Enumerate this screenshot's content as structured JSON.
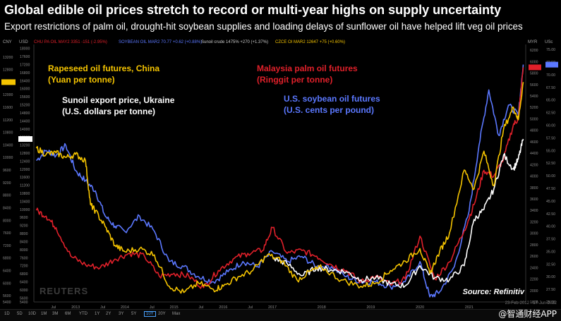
{
  "title": "Global edible oil prices stretch to record or multi-year highs on supply uncertainty",
  "subtitle": "Export restrictions of palm oil, drought-hit soybean supplies and loading delays of sunflower oil have helped lift veg oil prices",
  "source": "Source: Refinitiv",
  "watermark": "@智通财经APP",
  "reuters": "REUTERS",
  "date_stamp": "23-Feb-2012 - 17-Jun-2022",
  "infobar": {
    "cny_label": "CNY",
    "usd_label": "USD",
    "myr_label": "MYR",
    "usc_label": "USc",
    "palm": "CHU PA OIL MAY2  3351  -151 (-2.95%)",
    "soy": "SOYBEAN OIL MAR2  70.77  +0.62 (+0.88%)",
    "sun": "Sunoil crude  1475%  +270 (+1.37%)",
    "rape": "CZCE OI MAR2  12647  +75 (+0.60%)"
  },
  "toolbar": {
    "buttons": [
      "1D",
      "5D",
      "10D",
      "1M",
      "3M",
      "6M",
      "YTD",
      "1Y",
      "2Y",
      "3Y",
      "5Y",
      "10Y",
      "20Y",
      "Max"
    ],
    "active": "10Y"
  },
  "annotations": {
    "rapeseed": [
      "Rapeseed oil futures, China",
      "(Yuan per tonne)"
    ],
    "sunoil": [
      "Sunoil export price, Ukraine",
      "(U.S. dollars per tonne)"
    ],
    "palm": [
      "Malaysia palm oil futures",
      "(Ringgit per tonne)"
    ],
    "soy": [
      "U.S. soybean oil futures",
      "(U.S. cents per pound)"
    ]
  },
  "chart_data": {
    "type": "line",
    "title": "Global edible oil prices stretch to record or multi-year highs on supply uncertainty",
    "xlabel": "",
    "ylabel": "",
    "x_ticks": [
      "Jul",
      "2013",
      "Jul",
      "2014",
      "Jul",
      "2015",
      "Jul",
      "2016",
      "Jul",
      "2017",
      "2018",
      "2019",
      "2020",
      "2021"
    ],
    "axes": {
      "cny": {
        "ticks": [
          5400,
          5600,
          6000,
          6400,
          6800,
          7200,
          7600,
          8000,
          8400,
          8800,
          9200,
          9600,
          10000,
          10400,
          10800,
          11200,
          11600,
          12000,
          12400,
          12800,
          13200
        ],
        "range": [
          5400,
          13600
        ]
      },
      "usd": {
        "ticks": [
          5400,
          5600,
          6000,
          6400,
          6800,
          7200,
          7600,
          8000,
          8400,
          8800,
          9200,
          9600,
          10000,
          10400,
          10800,
          11200,
          11600,
          12000,
          12400,
          12800,
          13200,
          13600,
          14000,
          14400,
          14800,
          15200,
          15600,
          16000,
          16400,
          16800,
          17200,
          17600,
          18000
        ],
        "range": [
          5400,
          18200
        ]
      },
      "myr": {
        "ticks": [
          1800,
          2000,
          2200,
          2400,
          2600,
          2800,
          3000,
          3200,
          3400,
          3600,
          3800,
          4000,
          4200,
          4400,
          4600,
          4800,
          5000,
          5200,
          5400,
          5600,
          5800,
          6000,
          6200
        ],
        "range": [
          1800,
          6300
        ]
      },
      "usc": {
        "ticks": [
          25.0,
          27.5,
          30.0,
          32.5,
          35.0,
          37.5,
          40.0,
          42.5,
          45.0,
          47.5,
          50.0,
          52.5,
          55.0,
          57.5,
          60.0,
          62.5,
          65.0,
          67.5,
          70.0,
          72.5,
          75.0
        ],
        "range": [
          25,
          76
        ]
      }
    },
    "x_range": [
      2012.15,
      2022.15
    ],
    "series": [
      {
        "name": "Rapeseed oil futures, China (Yuan per tonne)",
        "color": "#f5c400",
        "axis": "cny",
        "x": [
          2012.2,
          2012.4,
          2012.6,
          2012.8,
          2013.0,
          2013.2,
          2013.3,
          2013.4,
          2013.6,
          2013.8,
          2014.0,
          2014.3,
          2014.6,
          2014.9,
          2015.2,
          2015.5,
          2015.8,
          2016.0,
          2016.3,
          2016.6,
          2016.9,
          2017.2,
          2017.5,
          2017.8,
          2018.0,
          2018.4,
          2018.8,
          2019.1,
          2019.4,
          2019.7,
          2020.0,
          2020.2,
          2020.4,
          2020.6,
          2020.9,
          2021.1,
          2021.3,
          2021.5,
          2021.7,
          2021.9,
          2022.0,
          2022.1
        ],
        "values": [
          10300,
          10100,
          10150,
          10000,
          10100,
          9900,
          8500,
          8300,
          7800,
          7200,
          7000,
          7100,
          6900,
          5900,
          5700,
          6000,
          5800,
          5900,
          6200,
          6400,
          6900,
          6700,
          6100,
          6400,
          6500,
          6100,
          5900,
          6000,
          6400,
          6700,
          7100,
          6300,
          7000,
          7600,
          9600,
          9000,
          10200,
          9100,
          10900,
          11600,
          11200,
          12400
        ]
      },
      {
        "name": "Sunoil export price, Ukraine (U.S. dollars per tonne)",
        "color": "#ffffff",
        "axis": "usd",
        "x": [
          2017.0,
          2017.3,
          2017.6,
          2017.9,
          2018.2,
          2018.5,
          2018.8,
          2019.1,
          2019.4,
          2019.7,
          2020.0,
          2020.3,
          2020.6,
          2020.9,
          2021.1,
          2021.3,
          2021.5,
          2021.7,
          2021.9,
          2022.0,
          2022.1
        ],
        "values": [
          7600,
          7300,
          6700,
          7100,
          7000,
          6900,
          6500,
          6600,
          6300,
          6200,
          7200,
          6600,
          6500,
          7200,
          9500,
          10000,
          11000,
          12700,
          12000,
          12500,
          13500
        ]
      },
      {
        "name": "Malaysia palm oil futures (Ringgit per tonne)",
        "color": "#e0202a",
        "axis": "myr",
        "x": [
          2012.2,
          2012.4,
          2012.6,
          2012.9,
          2013.2,
          2013.5,
          2013.8,
          2014.1,
          2014.4,
          2014.7,
          2015.0,
          2015.3,
          2015.6,
          2015.9,
          2016.2,
          2016.5,
          2016.8,
          2017.0,
          2017.3,
          2017.6,
          2017.9,
          2018.2,
          2018.5,
          2018.8,
          2019.1,
          2019.4,
          2019.7,
          2020.0,
          2020.3,
          2020.6,
          2020.9,
          2021.1,
          2021.3,
          2021.5,
          2021.7,
          2021.9,
          2022.0,
          2022.1
        ],
        "values": [
          3400,
          3300,
          3100,
          2600,
          2450,
          2400,
          2550,
          2650,
          2600,
          2250,
          2300,
          2250,
          2050,
          2350,
          2550,
          2650,
          2700,
          3100,
          2650,
          2700,
          2600,
          2450,
          2350,
          2150,
          2250,
          2100,
          2200,
          2950,
          2200,
          2500,
          3050,
          3500,
          4100,
          4000,
          4300,
          4900,
          5000,
          5900
        ]
      },
      {
        "name": "U.S. soybean oil futures (U.S. cents per pound)",
        "color": "#5b78ff",
        "axis": "usc",
        "x": [
          2012.2,
          2012.4,
          2012.6,
          2012.8,
          2013.0,
          2013.2,
          2013.4,
          2013.6,
          2013.8,
          2014.0,
          2014.3,
          2014.6,
          2014.9,
          2015.2,
          2015.5,
          2015.8,
          2016.1,
          2016.4,
          2016.7,
          2017.0,
          2017.3,
          2017.6,
          2017.9,
          2018.2,
          2018.5,
          2018.8,
          2019.1,
          2019.4,
          2019.7,
          2020.0,
          2020.2,
          2020.4,
          2020.7,
          2021.0,
          2021.2,
          2021.4,
          2021.6,
          2021.8,
          2022.0,
          2022.1
        ],
        "values": [
          53,
          55,
          54,
          56,
          51,
          49,
          47,
          42,
          40,
          39,
          42,
          39,
          33,
          32,
          30,
          29,
          31,
          33,
          32,
          35,
          33,
          34,
          32,
          32,
          30,
          29,
          29,
          28,
          29,
          33,
          26,
          27,
          32,
          43,
          56,
          67,
          58,
          64,
          62,
          72
        ]
      }
    ]
  }
}
